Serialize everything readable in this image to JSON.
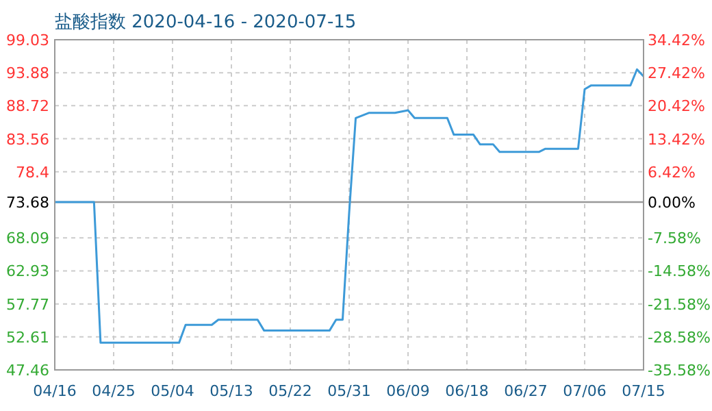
{
  "chart_data": {
    "type": "line",
    "title": "盐酸指数 2020-04-16 - 2020-07-15",
    "x": [
      "2020-04-16",
      "2020-04-22",
      "2020-04-23",
      "2020-05-05",
      "2020-05-06",
      "2020-05-10",
      "2020-05-11",
      "2020-05-17",
      "2020-05-18",
      "2020-05-28",
      "2020-05-29",
      "2020-05-30",
      "2020-05-31",
      "2020-06-01",
      "2020-06-03",
      "2020-06-07",
      "2020-06-09",
      "2020-06-10",
      "2020-06-15",
      "2020-06-16",
      "2020-06-19",
      "2020-06-20",
      "2020-06-22",
      "2020-06-23",
      "2020-06-29",
      "2020-06-30",
      "2020-07-05",
      "2020-07-06",
      "2020-07-07",
      "2020-07-13",
      "2020-07-14",
      "2020-07-15"
    ],
    "series": [
      {
        "color": "#3d9ad8",
        "values": [
          73.68,
          73.68,
          51.7,
          51.7,
          54.5,
          54.5,
          55.3,
          55.3,
          53.6,
          53.6,
          55.3,
          55.3,
          72.0,
          86.8,
          87.6,
          87.6,
          88.0,
          86.8,
          86.8,
          84.2,
          84.2,
          82.7,
          82.7,
          81.5,
          81.5,
          82.0,
          82.0,
          91.3,
          91.9,
          91.9,
          94.4,
          93.3
        ]
      }
    ],
    "xlim": [
      "2020-04-16",
      "2020-07-15"
    ],
    "xticks": [
      {
        "value": "2020-04-16",
        "label": "04/16"
      },
      {
        "value": "2020-04-25",
        "label": "04/25"
      },
      {
        "value": "2020-05-04",
        "label": "05/04"
      },
      {
        "value": "2020-05-13",
        "label": "05/13"
      },
      {
        "value": "2020-05-22",
        "label": "05/22"
      },
      {
        "value": "2020-05-31",
        "label": "05/31"
      },
      {
        "value": "2020-06-09",
        "label": "06/09"
      },
      {
        "value": "2020-06-18",
        "label": "06/18"
      },
      {
        "value": "2020-06-27",
        "label": "06/27"
      },
      {
        "value": "2020-07-06",
        "label": "07/06"
      },
      {
        "value": "2020-07-15",
        "label": "07/15"
      }
    ],
    "ylim": [
      47.46,
      99.03
    ],
    "yticks": [
      47.46,
      52.61,
      57.77,
      62.93,
      68.09,
      73.68,
      78.4,
      83.56,
      88.72,
      93.88,
      99.03
    ],
    "y2lim": [
      -35.58,
      34.42
    ],
    "y2ticks": [
      {
        "value": -35.58,
        "label": "-35.58%"
      },
      {
        "value": -28.58,
        "label": "-28.58%"
      },
      {
        "value": -21.58,
        "label": "-21.58%"
      },
      {
        "value": -14.58,
        "label": "-14.58%"
      },
      {
        "value": -7.58,
        "label": "-7.58%"
      },
      {
        "value": 0,
        "label": "0.00%"
      },
      {
        "value": 6.42,
        "label": "6.42%"
      },
      {
        "value": 13.42,
        "label": "13.42%"
      },
      {
        "value": 20.42,
        "label": "20.42%"
      },
      {
        "value": 27.42,
        "label": "27.42%"
      },
      {
        "value": 34.42,
        "label": "34.42%"
      }
    ],
    "ref_lines": [
      {
        "axis": "y",
        "value": 73.68,
        "color": "#999999"
      }
    ],
    "grid": true,
    "marker": "none",
    "line_style": "solid"
  }
}
